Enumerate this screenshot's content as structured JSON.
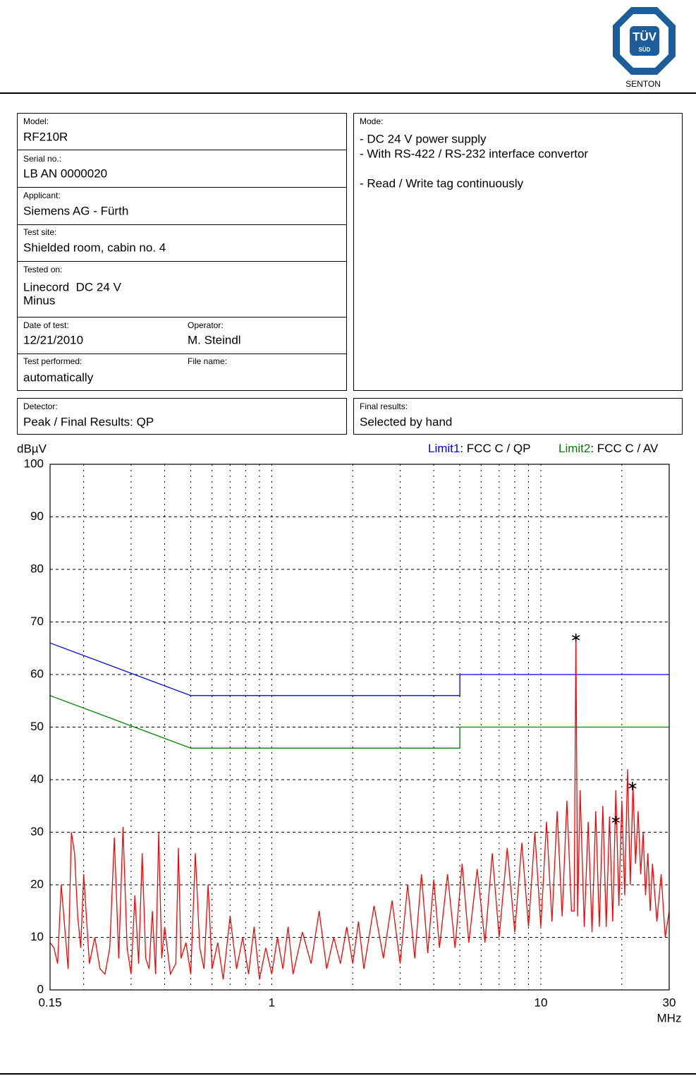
{
  "header": {
    "logo_top": "TÜV",
    "logo_bottom": "SÜD",
    "company": "SENTON"
  },
  "test_info": {
    "model": {
      "label": "Model:",
      "value": "RF210R"
    },
    "serial": {
      "label": "Serial no.:",
      "value": "LB AN 0000020"
    },
    "applicant": {
      "label": "Applicant:",
      "value": "Siemens AG - Fürth"
    },
    "test_site": {
      "label": "Test site:",
      "value": "Shielded room, cabin no. 4"
    },
    "tested_on": {
      "label": "Tested on:",
      "lines": [
        "Linecord  DC 24 V",
        "Minus"
      ]
    },
    "date": {
      "label": "Date of test:",
      "value": "12/21/2010"
    },
    "operator": {
      "label": "Operator:",
      "value": "M. Steindl"
    },
    "test_performed": {
      "label": "Test performed:",
      "value": "automatically"
    },
    "file_name": {
      "label": "File name:"
    }
  },
  "mode": {
    "label": "Mode:",
    "lines": [
      "- DC 24 V power supply",
      "- With RS-422 / RS-232 interface convertor",
      "- Read / Write tag continuously"
    ]
  },
  "detector": {
    "label": "Detector:",
    "value": "Peak / Final Results: QP"
  },
  "final_results": {
    "label": "Final results:",
    "value": "Selected by hand"
  },
  "chart_data": {
    "type": "line",
    "y_label": "dBµV",
    "x_label": "MHz",
    "xscale": "log",
    "xlim": [
      0.15,
      30
    ],
    "ylim": [
      0,
      100
    ],
    "xticks": [
      0.15,
      1,
      10,
      30
    ],
    "x_grid": [
      0.2,
      0.3,
      0.4,
      0.5,
      0.6,
      0.7,
      0.8,
      0.9,
      1,
      2,
      3,
      4,
      5,
      6,
      7,
      8,
      9,
      10,
      20
    ],
    "yticks": [
      0,
      10,
      20,
      30,
      40,
      50,
      60,
      70,
      80,
      90,
      100
    ],
    "grid": true,
    "series": [
      {
        "name": "Limit1",
        "label": ": FCC C / QP",
        "color": "#0000ff",
        "x": [
          0.15,
          0.5,
          5,
          5,
          30
        ],
        "values": [
          66,
          56,
          56,
          60,
          60
        ]
      },
      {
        "name": "Limit2",
        "label": ": FCC C / AV",
        "color": "#008000",
        "x": [
          0.15,
          0.5,
          5,
          5,
          30
        ],
        "values": [
          56,
          46,
          46,
          50,
          50
        ]
      },
      {
        "color": "#ff0000",
        "x": [
          0.15,
          0.155,
          0.16,
          0.165,
          0.17,
          0.175,
          0.18,
          0.185,
          0.19,
          0.195,
          0.2,
          0.21,
          0.22,
          0.23,
          0.24,
          0.25,
          0.26,
          0.27,
          0.28,
          0.29,
          0.3,
          0.31,
          0.32,
          0.33,
          0.34,
          0.35,
          0.36,
          0.37,
          0.38,
          0.39,
          0.4,
          0.42,
          0.44,
          0.45,
          0.46,
          0.48,
          0.5,
          0.52,
          0.54,
          0.56,
          0.58,
          0.6,
          0.63,
          0.66,
          0.7,
          0.74,
          0.78,
          0.82,
          0.86,
          0.9,
          0.95,
          1.0,
          1.05,
          1.1,
          1.15,
          1.2,
          1.3,
          1.4,
          1.5,
          1.6,
          1.7,
          1.8,
          1.9,
          2.0,
          2.1,
          2.2,
          2.4,
          2.6,
          2.8,
          3.0,
          3.2,
          3.4,
          3.6,
          3.8,
          4.0,
          4.2,
          4.5,
          4.8,
          5.1,
          5.4,
          5.8,
          6.2,
          6.6,
          7.0,
          7.5,
          8.0,
          8.5,
          9.0,
          9.5,
          10,
          10.5,
          11,
          11.5,
          12,
          12.5,
          13,
          13.3,
          13.5,
          13.7,
          14,
          14.5,
          15,
          15.5,
          16,
          16.5,
          17,
          17.5,
          18,
          18.5,
          19,
          19.5,
          20,
          20.5,
          21,
          21.5,
          22,
          22.5,
          23,
          23.5,
          24,
          24.5,
          25,
          25.5,
          26,
          27,
          28,
          29,
          30
        ],
        "values": [
          9,
          8,
          5,
          20,
          12,
          4,
          30,
          26,
          14,
          8,
          22,
          5,
          10,
          4,
          3,
          8,
          29,
          6,
          31,
          8,
          3,
          18,
          5,
          26,
          6,
          4,
          15,
          3,
          30,
          6,
          12,
          3,
          5,
          27,
          6,
          9,
          3,
          26,
          8,
          4,
          20,
          4,
          9,
          2,
          14,
          4,
          10,
          3,
          12,
          2,
          8,
          3,
          10,
          4,
          12,
          3,
          11,
          5,
          15,
          4,
          10,
          5,
          12,
          5,
          13,
          4,
          16,
          6,
          17,
          5,
          20,
          6,
          22,
          7,
          21,
          8,
          22,
          8,
          24,
          9,
          23,
          9,
          26,
          10,
          27,
          11,
          28,
          12,
          30,
          12,
          32,
          13,
          34,
          14,
          36,
          15,
          15,
          67,
          14,
          38,
          12,
          32,
          11,
          34,
          12,
          35,
          12,
          33,
          13,
          38,
          16,
          36,
          18,
          42,
          20,
          39,
          24,
          34,
          22,
          30,
          18,
          26,
          15,
          24,
          13,
          22,
          10,
          15
        ]
      },
      {
        "type": "scatter",
        "color": "#000000",
        "x": [
          13.5,
          19,
          21.9
        ],
        "values": [
          67,
          32.3,
          38.8
        ]
      }
    ]
  }
}
